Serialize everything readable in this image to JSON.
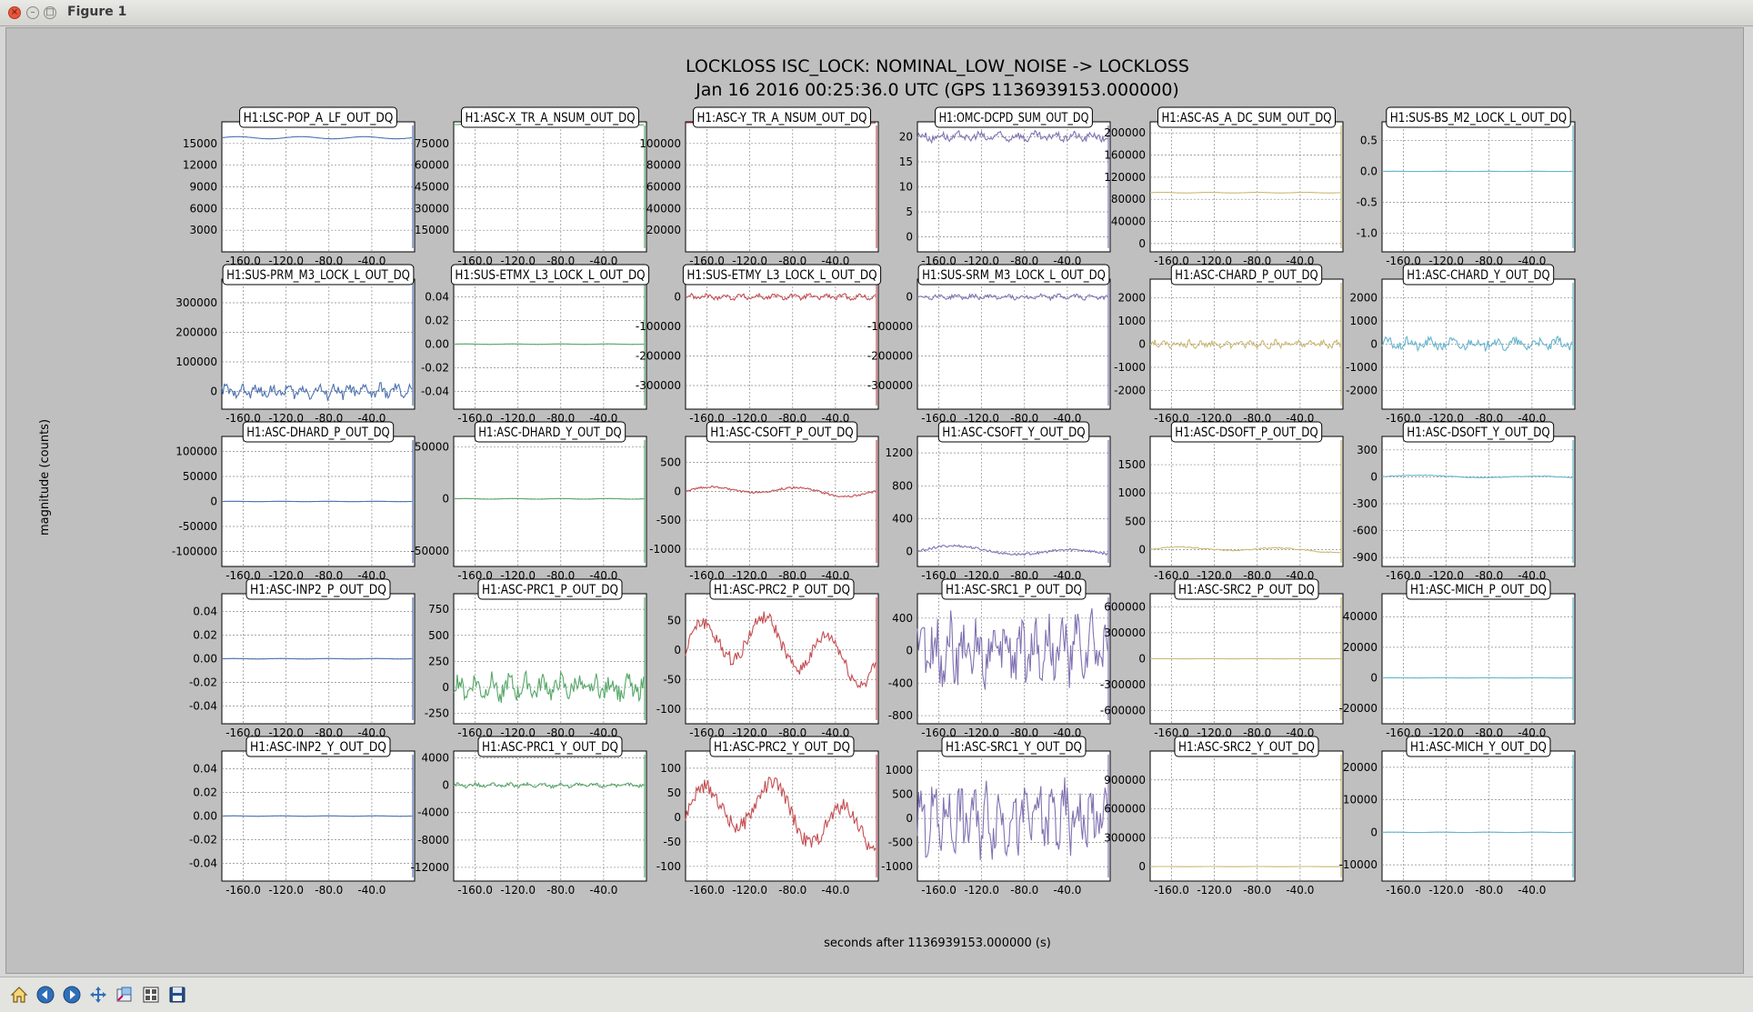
{
  "window": {
    "title": "Figure 1"
  },
  "figure": {
    "title_line1": "LOCKLOSS ISC_LOCK: NOMINAL_LOW_NOISE -> LOCKLOSS",
    "title_line2": "Jan 16 2016 00:25:36.0 UTC (GPS 1136939153.000000)",
    "ylabel": "magnitude (counts)",
    "xlabel": "seconds after 1136939153.000000 (s)",
    "xticks": [
      "-160.0",
      "-120.0",
      "-80.0",
      "-40.0"
    ],
    "colors": [
      "#4c72b0",
      "#55a868",
      "#c44e52",
      "#8172b2",
      "#ccb974",
      "#64b5cd"
    ]
  },
  "panels": [
    {
      "title": "H1:LSC-POP_A_LF_OUT_DQ",
      "yticks": [
        "3000",
        "6000",
        "9000",
        "12000",
        "15000"
      ],
      "ylim": [
        0,
        18000
      ],
      "trace": {
        "kind": "flat",
        "level": 15800,
        "amp": 150,
        "freq": 0.15
      }
    },
    {
      "title": "H1:ASC-X_TR_A_NSUM_OUT_DQ",
      "yticks": [
        "15000",
        "30000",
        "45000",
        "60000",
        "75000"
      ],
      "ylim": [
        0,
        90000
      ],
      "trace": {
        "kind": "flat",
        "level": 88000,
        "amp": 300,
        "freq": 0.2
      }
    },
    {
      "title": "H1:ASC-Y_TR_A_NSUM_OUT_DQ",
      "yticks": [
        "20000",
        "40000",
        "60000",
        "80000",
        "100000"
      ],
      "ylim": [
        0,
        120000
      ],
      "trace": {
        "kind": "flat",
        "level": 119000,
        "amp": 300,
        "freq": 0.2
      }
    },
    {
      "title": "H1:OMC-DCPD_SUM_OUT_DQ",
      "yticks": [
        "0",
        "5",
        "10",
        "15",
        "20"
      ],
      "ylim": [
        -3,
        23
      ],
      "trace": {
        "kind": "noisy",
        "level": 20,
        "amp": 0.9,
        "freq": 0.9
      }
    },
    {
      "title": "H1:ASC-AS_A_DC_SUM_OUT_DQ",
      "yticks": [
        "0",
        "40000",
        "80000",
        "120000",
        "160000",
        "200000"
      ],
      "ylim": [
        -15000,
        220000
      ],
      "trace": {
        "kind": "flat",
        "level": 92000,
        "amp": 600,
        "freq": 0.2
      }
    },
    {
      "title": "H1:SUS-BS_M2_LOCK_L_OUT_DQ",
      "yticks": [
        "-1.0",
        "-0.5",
        "0.0",
        "0.5"
      ],
      "ylim": [
        -1.3,
        0.8
      ],
      "trace": {
        "kind": "flat",
        "level": 0,
        "amp": 0.002,
        "freq": 0.2
      }
    },
    {
      "title": "H1:SUS-PRM_M3_LOCK_L_OUT_DQ",
      "yticks": [
        "0",
        "100000",
        "200000",
        "300000"
      ],
      "ylim": [
        -60000,
        380000
      ],
      "trace": {
        "kind": "noisy",
        "level": 0,
        "amp": 22000,
        "freq": 1.1
      }
    },
    {
      "title": "H1:SUS-ETMX_L3_LOCK_L_OUT_DQ",
      "yticks": [
        "-0.04",
        "-0.02",
        "0.00",
        "0.02",
        "0.04"
      ],
      "ylim": [
        -0.055,
        0.055
      ],
      "trace": {
        "kind": "flat",
        "level": 0,
        "amp": 0.0002,
        "freq": 0.2
      }
    },
    {
      "title": "H1:SUS-ETMY_L3_LOCK_L_OUT_DQ",
      "yticks": [
        "-300000",
        "-200000",
        "-100000",
        "0"
      ],
      "ylim": [
        -380000,
        60000
      ],
      "trace": {
        "kind": "noisy",
        "level": 0,
        "amp": 9000,
        "freq": 1.0
      }
    },
    {
      "title": "H1:SUS-SRM_M3_LOCK_L_OUT_DQ",
      "yticks": [
        "-300000",
        "-200000",
        "-100000",
        "0"
      ],
      "ylim": [
        -380000,
        60000
      ],
      "trace": {
        "kind": "noisy",
        "level": 0,
        "amp": 8000,
        "freq": 1.0
      }
    },
    {
      "title": "H1:ASC-CHARD_P_OUT_DQ",
      "yticks": [
        "-2000",
        "-1000",
        "0",
        "1000",
        "2000"
      ],
      "ylim": [
        -2800,
        2800
      ],
      "trace": {
        "kind": "noisy",
        "level": 0,
        "amp": 160,
        "freq": 1.4
      }
    },
    {
      "title": "H1:ASC-CHARD_Y_OUT_DQ",
      "yticks": [
        "-2000",
        "-1000",
        "0",
        "1000",
        "2000"
      ],
      "ylim": [
        -2800,
        2800
      ],
      "trace": {
        "kind": "noisy",
        "level": 0,
        "amp": 240,
        "freq": 0.8
      }
    },
    {
      "title": "H1:ASC-DHARD_P_OUT_DQ",
      "yticks": [
        "-100000",
        "-50000",
        "0",
        "50000",
        "100000"
      ],
      "ylim": [
        -130000,
        130000
      ],
      "trace": {
        "kind": "flat",
        "level": 0,
        "amp": 400,
        "freq": 0.2
      }
    },
    {
      "title": "H1:ASC-DHARD_Y_OUT_DQ",
      "yticks": [
        "-50000",
        "0",
        "50000"
      ],
      "ylim": [
        -65000,
        60000
      ],
      "trace": {
        "kind": "flat",
        "level": 0,
        "amp": 300,
        "freq": 0.2
      }
    },
    {
      "title": "H1:ASC-CSOFT_P_OUT_DQ",
      "yticks": [
        "-1000",
        "-500",
        "0",
        "500"
      ],
      "ylim": [
        -1300,
        950
      ],
      "trace": {
        "kind": "wave",
        "level": 0,
        "amp": 70,
        "freq": 0.35
      }
    },
    {
      "title": "H1:ASC-CSOFT_Y_OUT_DQ",
      "yticks": [
        "0",
        "400",
        "800",
        "1200"
      ],
      "ylim": [
        -180,
        1400
      ],
      "trace": {
        "kind": "wave",
        "level": 0,
        "amp": 60,
        "freq": 0.25
      }
    },
    {
      "title": "H1:ASC-DSOFT_P_OUT_DQ",
      "yticks": [
        "0",
        "500",
        "1000",
        "1500"
      ],
      "ylim": [
        -300,
        2000
      ],
      "trace": {
        "kind": "wave",
        "level": 0,
        "amp": 40,
        "freq": 0.3
      }
    },
    {
      "title": "H1:ASC-DSOFT_Y_OUT_DQ",
      "yticks": [
        "-900",
        "-600",
        "-300",
        "0",
        "300"
      ],
      "ylim": [
        -1000,
        450
      ],
      "trace": {
        "kind": "wave",
        "level": 0,
        "amp": 15,
        "freq": 0.25
      }
    },
    {
      "title": "H1:ASC-INP2_P_OUT_DQ",
      "yticks": [
        "-0.04",
        "-0.02",
        "0.00",
        "0.02",
        "0.04"
      ],
      "ylim": [
        -0.055,
        0.055
      ],
      "trace": {
        "kind": "flat",
        "level": 0,
        "amp": 0.0002,
        "freq": 0.2
      }
    },
    {
      "title": "H1:ASC-PRC1_P_OUT_DQ",
      "yticks": [
        "-250",
        "0",
        "250",
        "500",
        "750"
      ],
      "ylim": [
        -350,
        900
      ],
      "trace": {
        "kind": "noisy",
        "level": 0,
        "amp": 110,
        "freq": 1.0
      }
    },
    {
      "title": "H1:ASC-PRC2_P_OUT_DQ",
      "yticks": [
        "-100",
        "-50",
        "0",
        "50"
      ],
      "ylim": [
        -125,
        95
      ],
      "trace": {
        "kind": "wave",
        "level": 0,
        "amp": 45,
        "freq": 0.5
      }
    },
    {
      "title": "H1:ASC-SRC1_P_OUT_DQ",
      "yticks": [
        "-800",
        "-400",
        "0",
        "400"
      ],
      "ylim": [
        -900,
        700
      ],
      "trace": {
        "kind": "noisy",
        "level": 0,
        "amp": 380,
        "freq": 1.2
      }
    },
    {
      "title": "H1:ASC-SRC2_P_OUT_DQ",
      "yticks": [
        "-600000",
        "-300000",
        "0",
        "300000",
        "600000"
      ],
      "ylim": [
        -750000,
        750000
      ],
      "trace": {
        "kind": "flat",
        "level": 0,
        "amp": 1000,
        "freq": 0.2
      }
    },
    {
      "title": "H1:ASC-MICH_P_OUT_DQ",
      "yticks": [
        "-20000",
        "0",
        "20000",
        "40000"
      ],
      "ylim": [
        -30000,
        55000
      ],
      "trace": {
        "kind": "flat",
        "level": 0,
        "amp": 80,
        "freq": 0.2
      }
    },
    {
      "title": "H1:ASC-INP2_Y_OUT_DQ",
      "yticks": [
        "-0.04",
        "-0.02",
        "0.00",
        "0.02",
        "0.04"
      ],
      "ylim": [
        -0.055,
        0.055
      ],
      "trace": {
        "kind": "flat",
        "level": 0,
        "amp": 0.0002,
        "freq": 0.2
      }
    },
    {
      "title": "H1:ASC-PRC1_Y_OUT_DQ",
      "yticks": [
        "-12000",
        "-8000",
        "-4000",
        "0",
        "4000"
      ],
      "ylim": [
        -14000,
        5000
      ],
      "trace": {
        "kind": "noisy",
        "level": 0,
        "amp": 300,
        "freq": 1.0
      }
    },
    {
      "title": "H1:ASC-PRC2_Y_OUT_DQ",
      "yticks": [
        "-100",
        "-50",
        "0",
        "50",
        "100"
      ],
      "ylim": [
        -130,
        135
      ],
      "trace": {
        "kind": "wave",
        "level": 0,
        "amp": 60,
        "freq": 0.45
      }
    },
    {
      "title": "H1:ASC-SRC1_Y_OUT_DQ",
      "yticks": [
        "-1000",
        "-500",
        "0",
        "500",
        "1000"
      ],
      "ylim": [
        -1300,
        1400
      ],
      "trace": {
        "kind": "noisy",
        "level": 0,
        "amp": 650,
        "freq": 1.3
      }
    },
    {
      "title": "H1:ASC-SRC2_Y_OUT_DQ",
      "yticks": [
        "0",
        "300000",
        "600000",
        "900000"
      ],
      "ylim": [
        -150000,
        1200000
      ],
      "trace": {
        "kind": "flat",
        "level": 0,
        "amp": 1000,
        "freq": 0.2
      }
    },
    {
      "title": "H1:ASC-MICH_Y_OUT_DQ",
      "yticks": [
        "-10000",
        "0",
        "10000",
        "20000"
      ],
      "ylim": [
        -15000,
        25000
      ],
      "trace": {
        "kind": "flat",
        "level": 0,
        "amp": 60,
        "freq": 0.2
      }
    }
  ],
  "toolbar": {
    "home": "home-icon",
    "back": "back-arrow-icon",
    "forward": "forward-arrow-icon",
    "pan": "pan-arrows-icon",
    "zoom": "zoom-rect-icon",
    "subplots": "subplots-config-icon",
    "save": "save-disk-icon"
  }
}
